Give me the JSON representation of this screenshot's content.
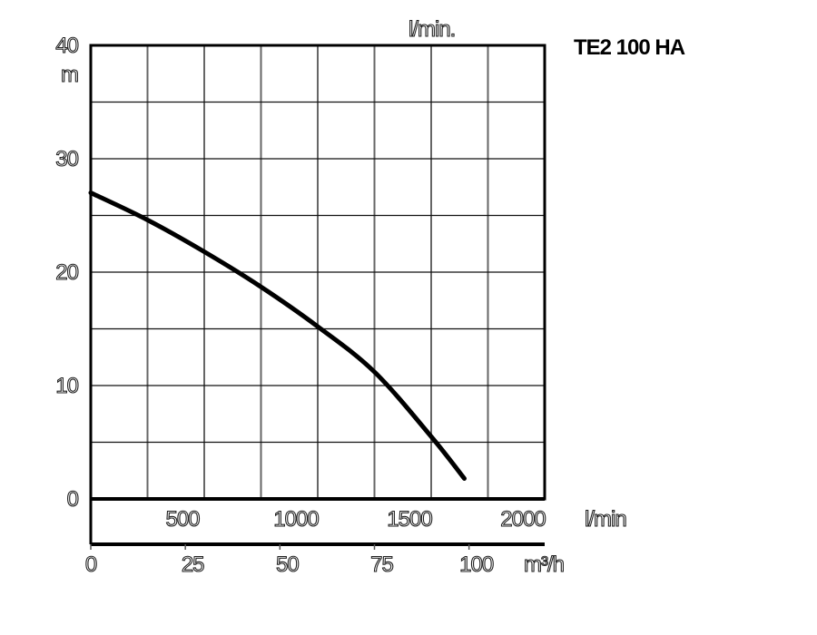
{
  "chart_data": {
    "type": "line",
    "title": "TE2 100 HA",
    "ylabel": "m",
    "xlabel": "l/min",
    "top_axis_label": "l/min.",
    "secondary_xlabel": "m³/h",
    "xlim": [
      0,
      2000
    ],
    "ylim": [
      0,
      40
    ],
    "grid": true,
    "y_ticks": [
      0,
      10,
      20,
      30,
      40
    ],
    "y_tick_labels": [
      "0",
      "10",
      "20",
      "30",
      "40"
    ],
    "x_ticks": [
      500,
      1000,
      1500,
      2000
    ],
    "x_tick_labels": [
      "500",
      "1000",
      "1500",
      "2000"
    ],
    "secondary_x_ticks": [
      0,
      25,
      50,
      75,
      100
    ],
    "secondary_x_tick_labels": [
      "0",
      "25",
      "50",
      "75",
      "100"
    ],
    "series": [
      {
        "name": "TE2 100 HA",
        "x": [
          0,
          250,
          500,
          750,
          1000,
          1250,
          1500,
          1646
        ],
        "y": [
          27.0,
          24.6,
          21.8,
          18.7,
          15.2,
          11.2,
          5.5,
          1.8
        ]
      }
    ]
  }
}
